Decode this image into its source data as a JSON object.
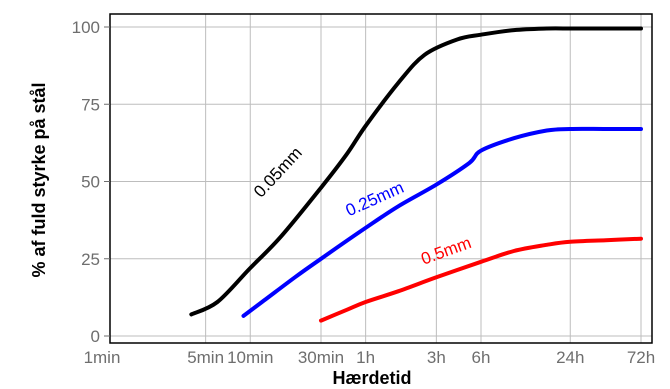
{
  "chart_data": {
    "type": "line",
    "title": "",
    "xlabel": "Hærdetid",
    "ylabel": "% af fuld styrke på stål",
    "x_scale": "log",
    "x_unit": "minutes",
    "x_ticks": [
      {
        "label": "1min",
        "value": 1
      },
      {
        "label": "5min",
        "value": 5
      },
      {
        "label": "10min",
        "value": 10
      },
      {
        "label": "30min",
        "value": 30
      },
      {
        "label": "1h",
        "value": 60
      },
      {
        "label": "3h",
        "value": 180
      },
      {
        "label": "6h",
        "value": 360
      },
      {
        "label": "24h",
        "value": 1440
      },
      {
        "label": "72h",
        "value": 4320
      }
    ],
    "y_ticks": [
      0,
      25,
      50,
      75,
      100
    ],
    "ylim": [
      0,
      100
    ],
    "grid": true,
    "series": [
      {
        "name": "0.05mm",
        "color": "#000000",
        "x": [
          4,
          6,
          10,
          16,
          30,
          45,
          60,
          100,
          150,
          250,
          360,
          600,
          1000,
          1440,
          2000,
          4320
        ],
        "y": [
          7,
          11,
          22,
          32,
          48,
          59,
          68,
          82,
          91,
          96,
          97.5,
          99,
          99.5,
          99.5,
          99.5,
          99.5
        ]
      },
      {
        "name": "0.25mm",
        "color": "#0000ff",
        "x": [
          9,
          12,
          20,
          30,
          60,
          100,
          180,
          300,
          360,
          600,
          1000,
          1440,
          2500,
          4320
        ],
        "y": [
          6.5,
          11,
          19,
          25,
          35,
          42,
          49,
          56,
          60,
          64,
          66.5,
          67,
          67,
          67
        ]
      },
      {
        "name": "0.5mm",
        "color": "#ff0000",
        "x": [
          30,
          45,
          60,
          100,
          180,
          360,
          600,
          1000,
          1440,
          2500,
          4320
        ],
        "y": [
          5,
          8.5,
          11,
          14.5,
          19,
          24,
          27.5,
          29.5,
          30.5,
          31,
          31.5
        ]
      }
    ]
  }
}
